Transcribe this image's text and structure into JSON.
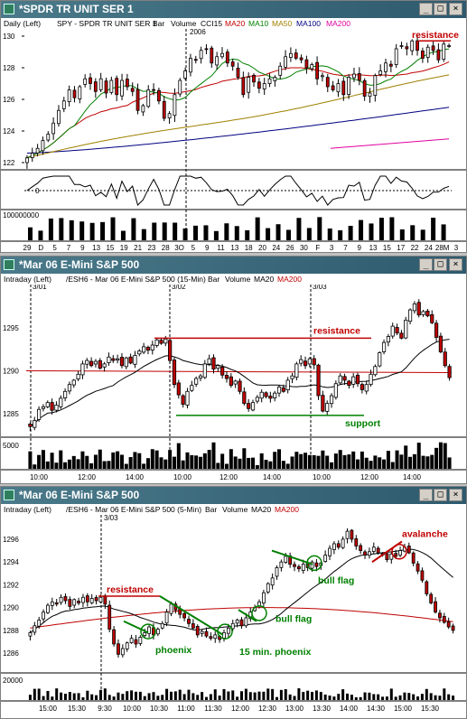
{
  "windows": [
    {
      "title": "*SPDR TR UNIT SER 1",
      "header": [
        {
          "text": "Daily  (Left)",
          "color": "#000000"
        },
        {
          "text": "SPY - SPDR TR UNIT SER 1",
          "color": "#000000"
        },
        {
          "text": "Bar",
          "color": "#000000"
        },
        {
          "text": "Volume",
          "color": "#000000"
        },
        {
          "text": "CCI15",
          "color": "#000000"
        },
        {
          "text": "MA20",
          "color": "#c00000"
        },
        {
          "text": "MA10",
          "color": "#008000"
        },
        {
          "text": "MA50",
          "color": "#a08000"
        },
        {
          "text": "MA100",
          "color": "#000080"
        },
        {
          "text": "MA200",
          "color": "#e000a0"
        }
      ]
    },
    {
      "title": "*Mar 06  E-Mini S&P 500",
      "header": [
        {
          "text": "Intraday  (Left)",
          "color": "#000000"
        },
        {
          "text": "/ESH6 - Mar 06  E-Mini S&P 500  (15-Min)",
          "color": "#000000"
        },
        {
          "text": "Bar",
          "color": "#000000"
        },
        {
          "text": "Volume",
          "color": "#000000"
        },
        {
          "text": "MA20",
          "color": "#000000"
        },
        {
          "text": "MA200",
          "color": "#c00000"
        }
      ]
    },
    {
      "title": "*Mar 06  E-Mini S&P 500",
      "header": [
        {
          "text": "Intraday  (Left)",
          "color": "#000000"
        },
        {
          "text": "/ESH6 - Mar 06  E-Mini S&P 500  (5-Min)",
          "color": "#000000"
        },
        {
          "text": "Bar",
          "color": "#000000"
        },
        {
          "text": "Volume",
          "color": "#000000"
        },
        {
          "text": "MA20",
          "color": "#000000"
        },
        {
          "text": "MA200",
          "color": "#c00000"
        }
      ]
    }
  ],
  "colors": {
    "up": "#ffffff",
    "down": "#c00000",
    "ma20_daily": "#c00000",
    "ma10": "#008000",
    "ma50": "#a08000",
    "ma100": "#000080",
    "ma200": "#e000a0",
    "resistance": "#c00000",
    "support": "#008000",
    "pattern": "#008000"
  },
  "chart_data": [
    {
      "type": "candlestick",
      "timeframe": "Daily",
      "symbol": "SPY",
      "ylim": [
        122,
        130
      ],
      "y_ticks": [
        "130",
        "128",
        "126",
        "124",
        "122"
      ],
      "x_ticks": [
        "29",
        "D",
        "5",
        "7",
        "9",
        "13",
        "15",
        "19",
        "21",
        "23",
        "28",
        "3O",
        "5",
        "9",
        "11",
        "13",
        "18",
        "20",
        "24",
        "26",
        "30",
        "F",
        "3",
        "7",
        "9",
        "13",
        "15",
        "17",
        "22",
        "24",
        "28M",
        "3"
      ],
      "top_label": "2006",
      "cci_ticks": [
        "0"
      ],
      "volume_tick": "100000000",
      "annotations": [
        {
          "text": "resistance",
          "color": "#c00000"
        }
      ],
      "closes": [
        122.3,
        122.6,
        122.9,
        123.4,
        123.8,
        124.5,
        125.3,
        125.9,
        126.6,
        126.1,
        126.8,
        127.3,
        127.0,
        126.5,
        127.3,
        126.4,
        127.2,
        126.3,
        127.2,
        126.8,
        126.5,
        125.3,
        125.6,
        126.6,
        126.6,
        125.9,
        124.8,
        125.1,
        126.3,
        127.2,
        127.8,
        128.6,
        128.5,
        129.1,
        129.2,
        128.3,
        128.7,
        128.9,
        128.3,
        128.1,
        127.4,
        126.3,
        127.4,
        127.1,
        126.7,
        127.0,
        127.3,
        127.4,
        128.1,
        128.7,
        128.9,
        128.6,
        128.5,
        128.0,
        128.2,
        127.3,
        127.5,
        126.8,
        126.6,
        127.0,
        126.3,
        127.4,
        127.6,
        127.2,
        126.2,
        126.4,
        127.5,
        127.8,
        128.3,
        128.1,
        129.2,
        129.4,
        129.2,
        129.7,
        129.1,
        128.6,
        129.3,
        129.1,
        128.5,
        129.5,
        129.4
      ],
      "resistance_level": 129.7,
      "ma20_end": 127.8,
      "ma50_end": 127.4,
      "ma100_end": 125.5,
      "ma200_end": 123.5
    },
    {
      "type": "candlestick",
      "timeframe": "15-Min",
      "symbol": "/ESH6",
      "ylim": [
        1283,
        1299
      ],
      "y_ticks": [
        "1295",
        "1290",
        "1285"
      ],
      "x_ticks": [
        "10:00",
        "12:00",
        "14:00",
        "10:00",
        "12:00",
        "14:00",
        "10:00",
        "12:00",
        "14:00"
      ],
      "session_labels": [
        "3/01",
        "3/02",
        "3/03"
      ],
      "volume_tick": "5000",
      "annotations": [
        {
          "text": "resistance",
          "color": "#c00000"
        },
        {
          "text": "support",
          "color": "#008000"
        }
      ],
      "resistance_level": 1293.8,
      "support_level": 1284.8,
      "ma200_level": 1290.0,
      "closes": [
        1283.5,
        1284.2,
        1285.5,
        1285.8,
        1286.3,
        1285.4,
        1286.0,
        1286.8,
        1287.6,
        1288.4,
        1288.9,
        1289.6,
        1290.8,
        1291.2,
        1290.6,
        1291.1,
        1290.3,
        1290.8,
        1291.6,
        1291.2,
        1291.4,
        1290.6,
        1291.5,
        1290.9,
        1291.8,
        1292.3,
        1292.8,
        1292.4,
        1293.0,
        1293.6,
        1293.2,
        1293.7,
        1291.2,
        1288.4,
        1287.2,
        1286.1,
        1287.6,
        1288.3,
        1289.1,
        1289.4,
        1290.8,
        1291.4,
        1290.2,
        1290.6,
        1289.5,
        1289.1,
        1288.3,
        1288.8,
        1287.6,
        1286.2,
        1285.6,
        1286.3,
        1286.9,
        1287.5,
        1287.0,
        1286.8,
        1287.4,
        1288.1,
        1287.6,
        1288.9,
        1289.4,
        1290.8,
        1291.3,
        1290.6,
        1291.4,
        1290.7,
        1287.1,
        1285.3,
        1286.2,
        1287.1,
        1288.5,
        1289.4,
        1288.9,
        1288.3,
        1289.3,
        1288.5,
        1287.8,
        1288.4,
        1289.6,
        1290.5,
        1292.1,
        1293.3,
        1294.0,
        1295.2,
        1294.4,
        1293.8,
        1295.9,
        1297.1,
        1297.8,
        1296.5,
        1296.9,
        1296.4,
        1295.6,
        1293.9,
        1292.2,
        1290.6,
        1289.2
      ]
    },
    {
      "type": "candlestick",
      "timeframe": "5-Min",
      "symbol": "/ESH6",
      "ylim": [
        1284.5,
        1297.5
      ],
      "y_ticks": [
        "1296",
        "1294",
        "1292",
        "1290",
        "1288",
        "1286"
      ],
      "x_ticks": [
        "15:00",
        "15:30",
        "9:30",
        "10:00",
        "10:30",
        "11:00",
        "11:30",
        "12:00",
        "12:30",
        "13:00",
        "13:30",
        "14:00",
        "14:30",
        "15:00",
        "15:30"
      ],
      "session_labels": [
        "3/03"
      ],
      "volume_tick": "20000",
      "annotations": [
        {
          "text": "resistance",
          "color": "#c00000"
        },
        {
          "text": "phoenix",
          "color": "#008000"
        },
        {
          "text": "15 min. phoenix",
          "color": "#008000"
        },
        {
          "text": "bull flag",
          "color": "#008000"
        },
        {
          "text": "bull flag",
          "color": "#008000"
        },
        {
          "text": "avalanche",
          "color": "#c00000"
        }
      ],
      "resistance_level": 1291.0,
      "closes": [
        1287.8,
        1288.4,
        1288.9,
        1289.6,
        1290.2,
        1290.5,
        1290.3,
        1290.9,
        1290.6,
        1290.1,
        1290.7,
        1290.4,
        1290.9,
        1290.5,
        1290.8,
        1290.6,
        1290.9,
        1290.3,
        1288.1,
        1286.8,
        1285.9,
        1286.4,
        1286.9,
        1287.3,
        1286.8,
        1287.4,
        1287.8,
        1288.3,
        1287.6,
        1288.1,
        1288.6,
        1289.6,
        1290.3,
        1289.8,
        1289.4,
        1289.1,
        1288.6,
        1288.2,
        1287.6,
        1287.9,
        1287.5,
        1287.3,
        1287.6,
        1287.2,
        1287.8,
        1288.2,
        1288.6,
        1288.9,
        1288.4,
        1289.1,
        1289.6,
        1290.0,
        1290.5,
        1291.3,
        1292.1,
        1292.6,
        1293.5,
        1294.0,
        1294.5,
        1293.8,
        1293.6,
        1293.4,
        1293.8,
        1293.5,
        1294.0,
        1293.6,
        1293.9,
        1294.6,
        1295.2,
        1295.6,
        1295.3,
        1296.0,
        1296.7,
        1296.0,
        1295.4,
        1295.0,
        1294.6,
        1294.9,
        1295.3,
        1294.8,
        1294.6,
        1294.2,
        1294.7,
        1294.5,
        1295.0,
        1295.3,
        1294.8,
        1293.9,
        1293.2,
        1292.4,
        1291.2,
        1290.4,
        1289.6,
        1289.1,
        1288.7,
        1288.3,
        1288.0
      ]
    }
  ]
}
